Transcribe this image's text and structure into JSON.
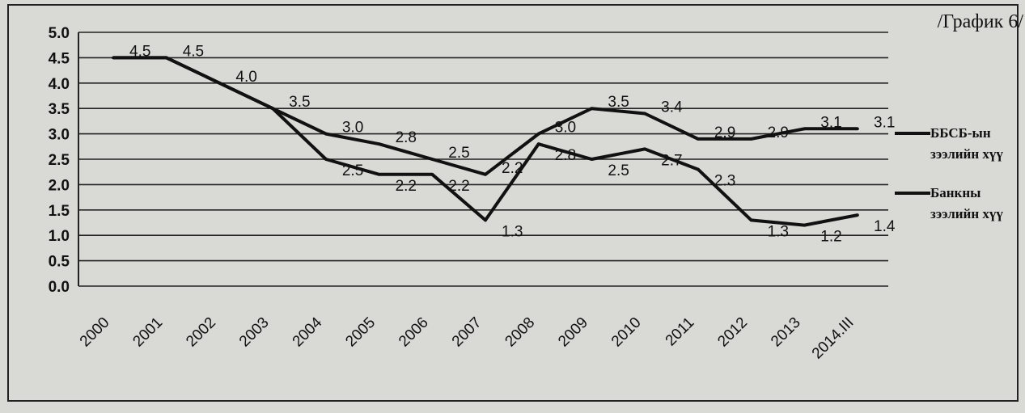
{
  "corner_label": "/График 6/",
  "chart_data": {
    "type": "line",
    "title": "",
    "xlabel": "",
    "ylabel": "",
    "ylim": [
      0,
      5
    ],
    "y_ticks": [
      "0.0",
      "0.5",
      "1.0",
      "1.5",
      "2.0",
      "2.5",
      "3.0",
      "3.5",
      "4.0",
      "4.5",
      "5.0"
    ],
    "categories": [
      "2000",
      "2001",
      "2002",
      "2003",
      "2004",
      "2005",
      "2006",
      "2007",
      "2008",
      "2009",
      "2010",
      "2011",
      "2012",
      "2013",
      "2014.III"
    ],
    "series": [
      {
        "name": "ББСБ-ын зээлийн хүү",
        "values": [
          4.5,
          4.5,
          4.0,
          3.5,
          3.0,
          2.8,
          2.5,
          2.2,
          3.0,
          3.5,
          3.4,
          2.9,
          2.9,
          3.1,
          3.1
        ],
        "labels": [
          "4.5",
          "4.5",
          "4.0",
          "3.5",
          "3.0",
          "2.8",
          "2.5",
          "2.2",
          "3.0",
          "3.5",
          "3.4",
          "2.9",
          "2.9",
          "3.1",
          "3.1"
        ]
      },
      {
        "name": "Банкны зээлийн хүү",
        "values": [
          4.5,
          4.5,
          4.0,
          3.5,
          2.5,
          2.2,
          2.2,
          1.3,
          2.8,
          2.5,
          2.7,
          2.3,
          1.3,
          1.2,
          1.4
        ],
        "labels": [
          "",
          "",
          "",
          "",
          "2.5",
          "2.2",
          "2.2",
          "1.3",
          "2.8",
          "2.5",
          "2.7",
          "2.3",
          "1.3",
          "1.2",
          "1.4"
        ]
      }
    ],
    "grid": true,
    "legend_position": "right",
    "colors": {
      "line": "#111111",
      "grid": "#222222",
      "background": "#d9d9d6"
    }
  }
}
